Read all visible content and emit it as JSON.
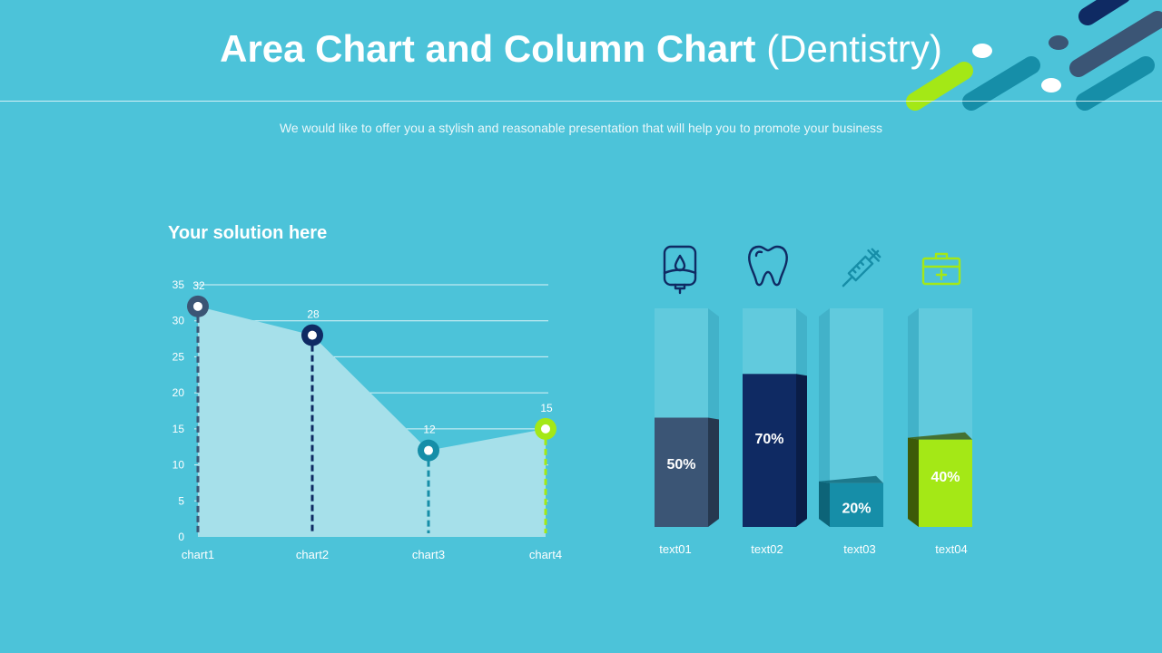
{
  "header": {
    "title_bold": "Area Chart and Column Chart",
    "title_light": "(Dentistry)",
    "subtitle": "We would like to offer you a stylish and reasonable presentation that will help you to promote your business"
  },
  "left_panel": {
    "heading": "Your solution here"
  },
  "colors": {
    "background": "#4cc3d9",
    "area_fill": "#a6e0ea",
    "dark_slate": "#3b5575",
    "navy": "#0f2a63",
    "teal": "#168ea8",
    "lime": "#a4e816"
  },
  "chart_data": [
    {
      "type": "area",
      "categories": [
        "chart1",
        "chart2",
        "chart3",
        "chart4"
      ],
      "values": [
        32,
        28,
        12,
        15
      ],
      "data_labels": [
        "32",
        "28",
        "12",
        "15"
      ],
      "marker_colors": [
        "#3b5575",
        "#0f2a63",
        "#168ea8",
        "#a4e816"
      ],
      "ylim": [
        0,
        35
      ],
      "yticks": [
        "0",
        "5",
        "10",
        "15",
        "20",
        "25",
        "30",
        "35"
      ],
      "grid": true,
      "title": "",
      "xlabel": "",
      "ylabel": ""
    },
    {
      "type": "bar",
      "categories": [
        "text01",
        "text02",
        "text03",
        "text04"
      ],
      "values": [
        50,
        70,
        20,
        40
      ],
      "value_labels": [
        "50%",
        "70%",
        "20%",
        "40%"
      ],
      "ylim": [
        0,
        100
      ],
      "icons": [
        "iv-bag-icon",
        "tooth-icon",
        "syringe-icon",
        "first-aid-kit-icon"
      ],
      "icon_colors": [
        "#0f2a63",
        "#0f2a63",
        "#168ea8",
        "#a4e816"
      ],
      "bar_colors": [
        "#3b5575",
        "#0f2a63",
        "#168ea8",
        "#a4e816"
      ],
      "side_colors": [
        "#26384f",
        "#0a1d47",
        "#0d6478",
        "#3d5a08"
      ]
    }
  ]
}
